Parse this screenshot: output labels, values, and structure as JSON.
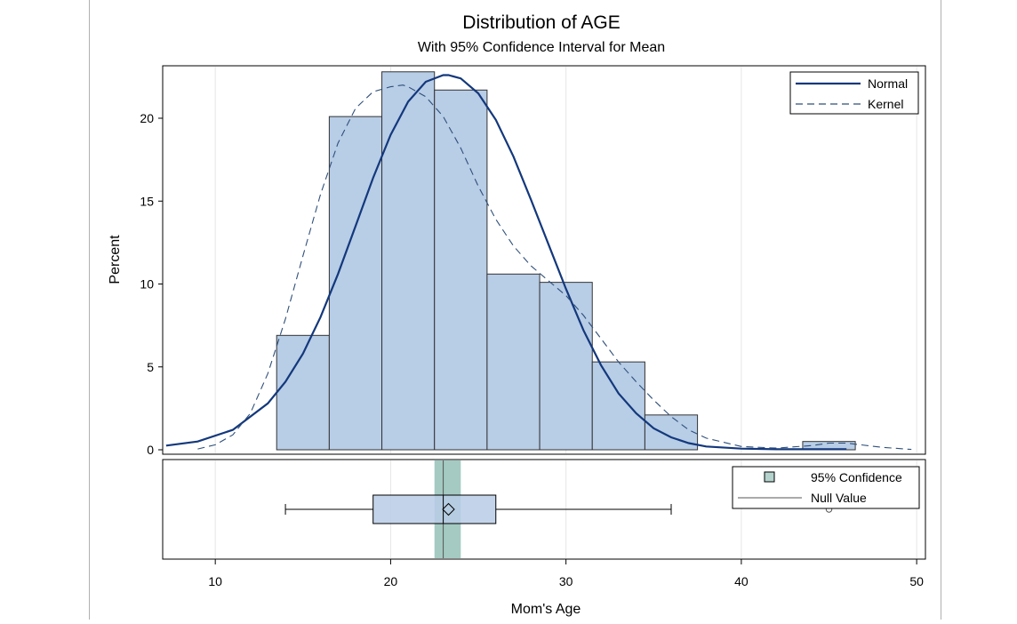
{
  "chart_data": {
    "type": "bar",
    "title": "Distribution of AGE",
    "subtitle": "With 95% Confidence Interval for Mean",
    "xlabel": "Mom's Age",
    "ylabel": "Percent",
    "xlim": [
      7,
      50.5
    ],
    "ylim": [
      0,
      23
    ],
    "x_ticks": [
      "10",
      "20",
      "30",
      "40",
      "50"
    ],
    "x_tick_values": [
      10,
      20,
      30,
      40,
      50
    ],
    "y_ticks": [
      "0",
      "5",
      "10",
      "15",
      "20"
    ],
    "y_tick_values": [
      0,
      5,
      10,
      15,
      20
    ],
    "bars": [
      {
        "x0": 13.5,
        "x1": 16.5,
        "value": 6.9
      },
      {
        "x0": 16.5,
        "x1": 19.5,
        "value": 20.1
      },
      {
        "x0": 19.5,
        "x1": 22.5,
        "value": 22.8
      },
      {
        "x0": 22.5,
        "x1": 25.5,
        "value": 21.7
      },
      {
        "x0": 25.5,
        "x1": 28.5,
        "value": 10.6
      },
      {
        "x0": 28.5,
        "x1": 31.5,
        "value": 10.1
      },
      {
        "x0": 31.5,
        "x1": 34.5,
        "value": 5.3
      },
      {
        "x0": 34.5,
        "x1": 37.5,
        "value": 2.1
      },
      {
        "x0": 43.5,
        "x1": 46.5,
        "value": 0.5
      }
    ],
    "series": [
      {
        "name": "Normal",
        "style": "solid",
        "x": [
          7.2,
          9,
          11,
          13,
          14,
          15,
          16,
          17,
          18,
          19,
          20,
          21,
          22,
          23,
          23.3,
          24,
          25,
          26,
          27,
          28,
          29,
          30,
          31,
          32,
          33,
          34,
          35,
          36,
          37,
          38,
          40,
          42,
          44,
          46
        ],
        "y": [
          0.25,
          0.5,
          1.2,
          2.8,
          4.1,
          5.8,
          8.0,
          10.6,
          13.5,
          16.4,
          19.0,
          21.0,
          22.2,
          22.6,
          22.6,
          22.4,
          21.5,
          19.9,
          17.7,
          15.1,
          12.4,
          9.7,
          7.2,
          5.1,
          3.4,
          2.2,
          1.3,
          0.75,
          0.4,
          0.2,
          0.07,
          0.03,
          0.03,
          0.04
        ]
      },
      {
        "name": "Kernel",
        "style": "dashed",
        "x": [
          9,
          10,
          11,
          12,
          13,
          14,
          15,
          16,
          17,
          18,
          19,
          20,
          20.7,
          21,
          22,
          23,
          24,
          25,
          26,
          27,
          28,
          29,
          30,
          31,
          32,
          33,
          34,
          35,
          36,
          37,
          38,
          40,
          42,
          44,
          45,
          46,
          48,
          49.7
        ],
        "y": [
          0.05,
          0.3,
          0.9,
          2.2,
          4.6,
          7.9,
          11.7,
          15.4,
          18.5,
          20.6,
          21.6,
          21.9,
          22.0,
          21.9,
          21.3,
          20.1,
          18.2,
          15.9,
          13.9,
          12.3,
          11.1,
          10.2,
          9.3,
          8.1,
          6.7,
          5.3,
          4.1,
          3.0,
          2.0,
          1.2,
          0.7,
          0.2,
          0.1,
          0.25,
          0.4,
          0.4,
          0.15,
          0.02
        ]
      }
    ],
    "legend": {
      "position": "top-right",
      "entries": [
        "Normal",
        "Kernel"
      ]
    },
    "boxplot": {
      "min": 14,
      "q1": 19,
      "median": 23,
      "mean": 23.3,
      "q3": 26,
      "whisker_high": 36,
      "outliers": [
        45
      ],
      "ci_mean": [
        22.5,
        24.0
      ],
      "null_value": 23,
      "legend": {
        "position": "top-right",
        "entries": [
          "95% Confidence",
          "Null Value"
        ]
      }
    },
    "colors": {
      "bar_fill": "#b8cde6",
      "bar_stroke": "#333333",
      "normal": "#13387c",
      "kernel": "#2f4f7a",
      "ci_band": "#86b8ad",
      "box_fill": "#b8cde6",
      "grid": "#e6e6e6"
    }
  }
}
